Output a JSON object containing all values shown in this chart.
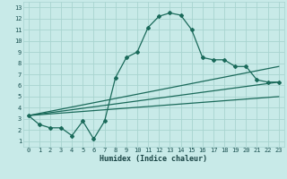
{
  "xlabel": "Humidex (Indice chaleur)",
  "bg_color": "#c8eae8",
  "grid_color": "#a8d4d0",
  "line_color": "#1a6a5a",
  "xlim": [
    -0.5,
    23.5
  ],
  "ylim": [
    0.5,
    13.5
  ],
  "xticks": [
    0,
    1,
    2,
    3,
    4,
    5,
    6,
    7,
    8,
    9,
    10,
    11,
    12,
    13,
    14,
    15,
    16,
    17,
    18,
    19,
    20,
    21,
    22,
    23
  ],
  "yticks": [
    1,
    2,
    3,
    4,
    5,
    6,
    7,
    8,
    9,
    10,
    11,
    12,
    13
  ],
  "curve_x": [
    0,
    1,
    2,
    3,
    4,
    5,
    6,
    7,
    8,
    9,
    10,
    11,
    12,
    13,
    14,
    15,
    16,
    17,
    18,
    19,
    20,
    21,
    22,
    23
  ],
  "curve_y": [
    3.3,
    2.5,
    2.2,
    2.2,
    1.5,
    2.8,
    1.2,
    2.8,
    6.7,
    8.5,
    9.0,
    11.2,
    12.2,
    12.5,
    12.3,
    11.0,
    8.5,
    8.3,
    8.3,
    7.7,
    7.7,
    6.5,
    6.3,
    6.3
  ],
  "line1_x": [
    0,
    23
  ],
  "line1_y": [
    3.3,
    7.7
  ],
  "line2_x": [
    0,
    23
  ],
  "line2_y": [
    3.3,
    6.3
  ],
  "line3_x": [
    0,
    23
  ],
  "line3_y": [
    3.3,
    5.0
  ]
}
